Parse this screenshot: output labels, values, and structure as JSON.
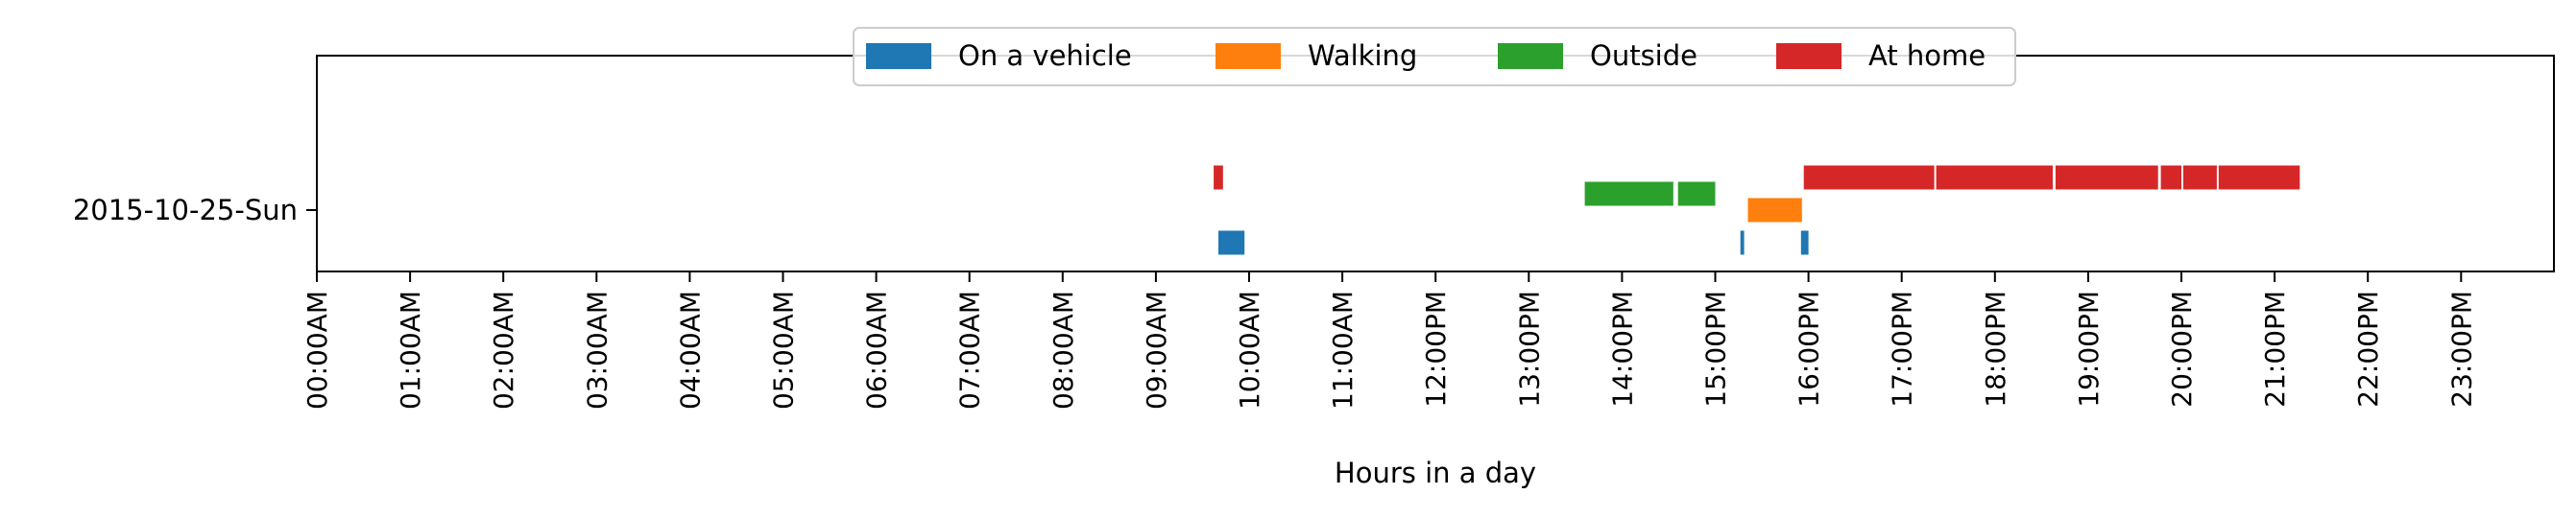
{
  "chart_data": {
    "type": "timeline",
    "xlabel": "Hours in a day",
    "xlim": [
      0,
      24
    ],
    "grid": false,
    "legend_position": "top-center",
    "categories": [
      "2015-10-25-Sun"
    ],
    "x_tick_labels": [
      "00:00AM",
      "01:00AM",
      "02:00AM",
      "03:00AM",
      "04:00AM",
      "05:00AM",
      "06:00AM",
      "07:00AM",
      "08:00AM",
      "09:00AM",
      "10:00AM",
      "11:00AM",
      "12:00PM",
      "13:00PM",
      "14:00PM",
      "15:00PM",
      "16:00PM",
      "17:00PM",
      "18:00PM",
      "19:00PM",
      "20:00PM",
      "21:00PM",
      "22:00PM",
      "23:00PM"
    ],
    "series": [
      {
        "name": "On a vehicle",
        "color": "#1f77b4",
        "lane": -1,
        "intervals": [
          [
            9.67,
            9.95
          ],
          [
            15.27,
            15.31
          ],
          [
            15.92,
            16.0
          ]
        ]
      },
      {
        "name": "Walking",
        "color": "#ff7f0e",
        "lane": 0,
        "intervals": [
          [
            15.35,
            15.93
          ]
        ]
      },
      {
        "name": "Outside",
        "color": "#2ca02c",
        "lane": 0.5,
        "intervals": [
          [
            13.6,
            14.55
          ],
          [
            14.6,
            15.0
          ]
        ]
      },
      {
        "name": "At home",
        "color": "#d62728",
        "lane": 1,
        "intervals": [
          [
            9.62,
            9.72
          ],
          [
            15.95,
            17.35
          ],
          [
            17.37,
            18.62
          ],
          [
            18.65,
            19.75
          ],
          [
            19.78,
            20.0
          ],
          [
            20.02,
            20.38
          ],
          [
            20.4,
            21.27
          ]
        ]
      }
    ]
  }
}
